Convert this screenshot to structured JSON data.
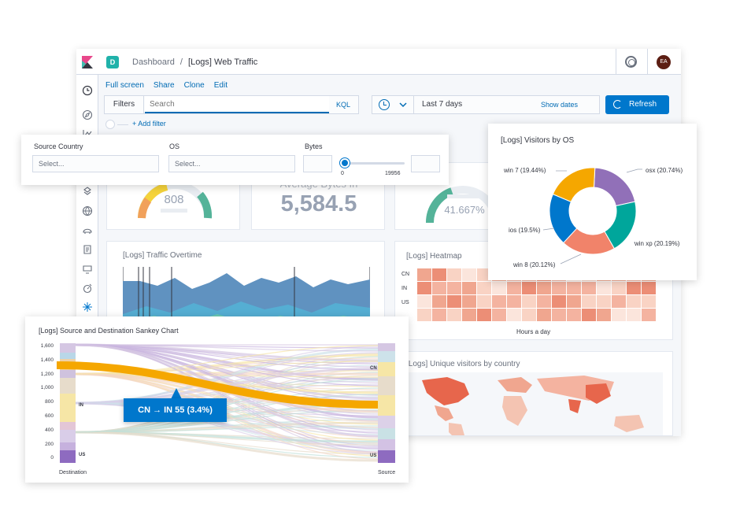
{
  "topbar": {
    "space_initial": "D",
    "breadcrumb_root": "Dashboard",
    "breadcrumb_sep": "/",
    "breadcrumb_current": "[Logs] Web Traffic",
    "avatar_initials": "EA"
  },
  "menu": {
    "full_screen": "Full screen",
    "share": "Share",
    "clone": "Clone",
    "edit": "Edit"
  },
  "query": {
    "filters_label": "Filters",
    "search_placeholder": "Search",
    "kql_label": "KQL",
    "date_range": "Last 7 days",
    "show_dates": "Show dates",
    "refresh_label": "Refresh",
    "add_filter": "+ Add filter"
  },
  "controls": {
    "source_country_label": "Source Country",
    "source_country_placeholder": "Select...",
    "os_label": "OS",
    "os_placeholder": "Select...",
    "bytes_label": "Bytes",
    "bytes_min": "0",
    "bytes_max": "19956"
  },
  "metrics": {
    "gauge1_value": "808",
    "avg_bytes_label": "Average Bytes In",
    "avg_bytes_value": "5,584.5",
    "gauge2_value": "41.667%"
  },
  "panels": {
    "traffic_overtime_title": "[Logs] Traffic Overtime",
    "heatmap_title": "[Logs] Heatmap",
    "heatmap_rows": [
      "CN",
      "IN",
      "US"
    ],
    "heatmap_xlabel": "Hours a day",
    "unique_visitors_title": "[Logs] Unique visitors by country"
  },
  "visitors_os": {
    "title": "[Logs] Visitors by OS",
    "chart_data": {
      "type": "pie",
      "title": "[Logs] Visitors by OS",
      "slices": [
        {
          "label": "osx (20.74%)",
          "value": 20.74,
          "color": "#9170b8"
        },
        {
          "label": "win xp (20.19%)",
          "value": 20.19,
          "color": "#00a69b"
        },
        {
          "label": "win 8 (20.12%)",
          "value": 20.12,
          "color": "#f1836a"
        },
        {
          "label": "ios (19.5%)",
          "value": 19.5,
          "color": "#0077cc"
        },
        {
          "label": "win 7 (19.44%)",
          "value": 19.44,
          "color": "#f5a700"
        }
      ]
    }
  },
  "sankey": {
    "title": "[Logs] Source and Destination Sankey Chart",
    "y_ticks": [
      "1,600",
      "1,400",
      "1,200",
      "1,000",
      "800",
      "600",
      "400",
      "200",
      "0"
    ],
    "left_axis_label": "Destination",
    "right_axis_label": "Source",
    "left_node_in": "IN",
    "left_node_us": "US",
    "right_node_cn": "CN",
    "right_node_us": "US",
    "tooltip": "CN → IN 55 (3.4%)"
  }
}
